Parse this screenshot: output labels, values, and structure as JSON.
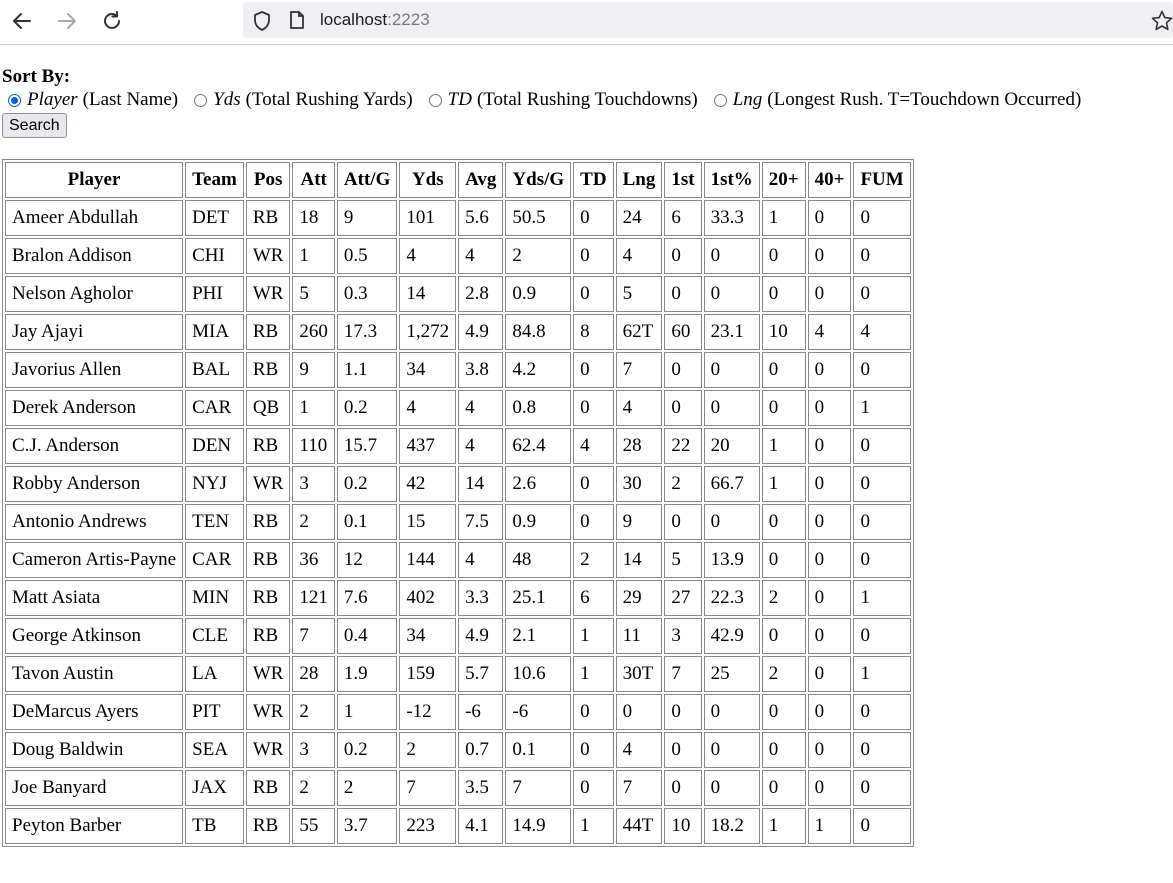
{
  "browser": {
    "url_host": "localhost",
    "url_port": ":2223"
  },
  "sort": {
    "title": "Sort By:",
    "options": [
      {
        "name": "Player",
        "desc": "(Last Name)",
        "checked": true
      },
      {
        "name": "Yds",
        "desc": "(Total Rushing Yards)",
        "checked": false
      },
      {
        "name": "TD",
        "desc": "(Total Rushing Touchdowns)",
        "checked": false
      },
      {
        "name": "Lng",
        "desc": "(Longest Rush. T=Touchdown Occurred)",
        "checked": false
      }
    ],
    "search_label": "Search"
  },
  "table": {
    "headers": [
      "Player",
      "Team",
      "Pos",
      "Att",
      "Att/G",
      "Yds",
      "Avg",
      "Yds/G",
      "TD",
      "Lng",
      "1st",
      "1st%",
      "20+",
      "40+",
      "FUM"
    ],
    "rows": [
      [
        "Ameer Abdullah",
        "DET",
        "RB",
        "18",
        "9",
        "101",
        "5.6",
        "50.5",
        "0",
        "24",
        "6",
        "33.3",
        "1",
        "0",
        "0"
      ],
      [
        "Bralon Addison",
        "CHI",
        "WR",
        "1",
        "0.5",
        "4",
        "4",
        "2",
        "0",
        "4",
        "0",
        "0",
        "0",
        "0",
        "0"
      ],
      [
        "Nelson Agholor",
        "PHI",
        "WR",
        "5",
        "0.3",
        "14",
        "2.8",
        "0.9",
        "0",
        "5",
        "0",
        "0",
        "0",
        "0",
        "0"
      ],
      [
        "Jay Ajayi",
        "MIA",
        "RB",
        "260",
        "17.3",
        "1,272",
        "4.9",
        "84.8",
        "8",
        "62T",
        "60",
        "23.1",
        "10",
        "4",
        "4"
      ],
      [
        "Javorius Allen",
        "BAL",
        "RB",
        "9",
        "1.1",
        "34",
        "3.8",
        "4.2",
        "0",
        "7",
        "0",
        "0",
        "0",
        "0",
        "0"
      ],
      [
        "Derek Anderson",
        "CAR",
        "QB",
        "1",
        "0.2",
        "4",
        "4",
        "0.8",
        "0",
        "4",
        "0",
        "0",
        "0",
        "0",
        "1"
      ],
      [
        "C.J. Anderson",
        "DEN",
        "RB",
        "110",
        "15.7",
        "437",
        "4",
        "62.4",
        "4",
        "28",
        "22",
        "20",
        "1",
        "0",
        "0"
      ],
      [
        "Robby Anderson",
        "NYJ",
        "WR",
        "3",
        "0.2",
        "42",
        "14",
        "2.6",
        "0",
        "30",
        "2",
        "66.7",
        "1",
        "0",
        "0"
      ],
      [
        "Antonio Andrews",
        "TEN",
        "RB",
        "2",
        "0.1",
        "15",
        "7.5",
        "0.9",
        "0",
        "9",
        "0",
        "0",
        "0",
        "0",
        "0"
      ],
      [
        "Cameron Artis-Payne",
        "CAR",
        "RB",
        "36",
        "12",
        "144",
        "4",
        "48",
        "2",
        "14",
        "5",
        "13.9",
        "0",
        "0",
        "0"
      ],
      [
        "Matt Asiata",
        "MIN",
        "RB",
        "121",
        "7.6",
        "402",
        "3.3",
        "25.1",
        "6",
        "29",
        "27",
        "22.3",
        "2",
        "0",
        "1"
      ],
      [
        "George Atkinson",
        "CLE",
        "RB",
        "7",
        "0.4",
        "34",
        "4.9",
        "2.1",
        "1",
        "11",
        "3",
        "42.9",
        "0",
        "0",
        "0"
      ],
      [
        "Tavon Austin",
        "LA",
        "WR",
        "28",
        "1.9",
        "159",
        "5.7",
        "10.6",
        "1",
        "30T",
        "7",
        "25",
        "2",
        "0",
        "1"
      ],
      [
        "DeMarcus Ayers",
        "PIT",
        "WR",
        "2",
        "1",
        "-12",
        "-6",
        "-6",
        "0",
        "0",
        "0",
        "0",
        "0",
        "0",
        "0"
      ],
      [
        "Doug Baldwin",
        "SEA",
        "WR",
        "3",
        "0.2",
        "2",
        "0.7",
        "0.1",
        "0",
        "4",
        "0",
        "0",
        "0",
        "0",
        "0"
      ],
      [
        "Joe Banyard",
        "JAX",
        "RB",
        "2",
        "2",
        "7",
        "3.5",
        "7",
        "0",
        "7",
        "0",
        "0",
        "0",
        "0",
        "0"
      ],
      [
        "Peyton Barber",
        "TB",
        "RB",
        "55",
        "3.7",
        "223",
        "4.1",
        "14.9",
        "1",
        "44T",
        "10",
        "18.2",
        "1",
        "1",
        "0"
      ]
    ]
  }
}
